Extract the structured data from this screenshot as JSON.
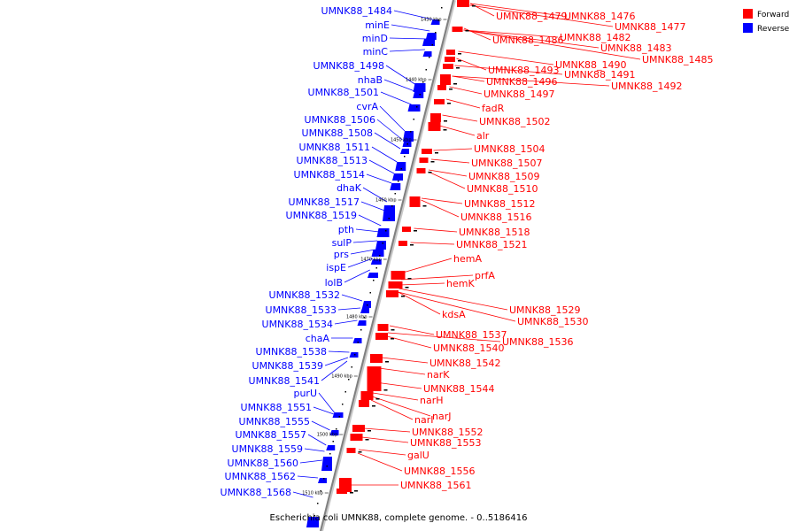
{
  "caption": "Escherichia coli UMNK88, complete genome. - 0..5186416",
  "legend": [
    {
      "label": "Forward",
      "color": "#ff0000"
    },
    {
      "label": "Reverse",
      "color": "#0000ff"
    }
  ],
  "colors": {
    "forward": "#ff0000",
    "reverse": "#0000ff",
    "backbone": "#808080"
  },
  "ticks": [
    "1430 kbp",
    "1440 kbp",
    "1450 kbp",
    "1460 kbp",
    "1470 kbp",
    "1480 kbp",
    "1490 kbp",
    "1500 kbp",
    "1510 kbp"
  ],
  "reverse_labels": [
    "UMNK88_1484",
    "minE",
    "minD",
    "minC",
    "UMNK88_1498",
    "nhaB",
    "UMNK88_1501",
    "cvrA",
    "UMNK88_1506",
    "UMNK88_1508",
    "UMNK88_1511",
    "UMNK88_1513",
    "UMNK88_1514",
    "dhaK",
    "UMNK88_1517",
    "UMNK88_1519",
    "pth",
    "sulP",
    "prs",
    "ispE",
    "lolB",
    "UMNK88_1532",
    "UMNK88_1533",
    "UMNK88_1534",
    "chaA",
    "UMNK88_1538",
    "UMNK88_1539",
    "UMNK88_1541",
    "purU",
    "UMNK88_1551",
    "UMNK88_1555",
    "UMNK88_1557",
    "UMNK88_1559",
    "UMNK88_1560",
    "UMNK88_1562",
    "UMNK88_1568"
  ],
  "forward_labels": [
    "UMNK88_1479",
    "UMNK88_1476",
    "UMNK88_1477",
    "UMNK88_1486",
    "UMNK88_1482",
    "UMNK88_1483",
    "UMNK88_1485",
    "UMNK88_1490",
    "UMNK88_1493",
    "UMNK88_1491",
    "UMNK88_1496",
    "UMNK88_1492",
    "UMNK88_1497",
    "fadR",
    "UMNK88_1502",
    "alr",
    "UMNK88_1504",
    "UMNK88_1507",
    "UMNK88_1509",
    "UMNK88_1510",
    "UMNK88_1512",
    "UMNK88_1516",
    "UMNK88_1518",
    "UMNK88_1521",
    "hemA",
    "prfA",
    "hemK",
    "UMNK88_1529",
    "kdsA",
    "UMNK88_1530",
    "UMNK88_1537",
    "UMNK88_1536",
    "UMNK88_1540",
    "UMNK88_1542",
    "narK",
    "UMNK88_1544",
    "narH",
    "narJ",
    "narI",
    "UMNK88_1552",
    "UMNK88_1553",
    "galU",
    "UMNK88_1556",
    "UMNK88_1561"
  ]
}
